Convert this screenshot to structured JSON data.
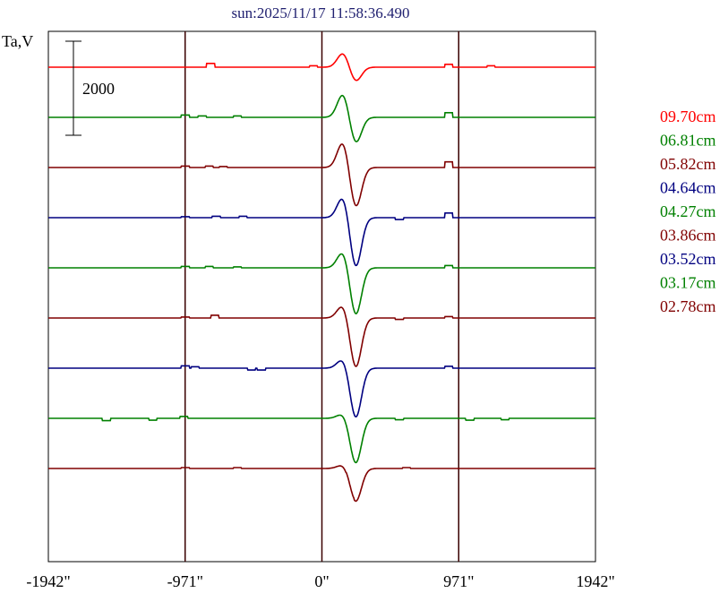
{
  "chart_data": {
    "type": "line",
    "title": "sun:2025/11/17 11:58:36.490",
    "ylabel": "Ta,V",
    "xlabel": "",
    "x_ticks": [
      {
        "value": -1942,
        "label": "-1942\""
      },
      {
        "value": -971,
        "label": "-971\""
      },
      {
        "value": 0,
        "label": "0\""
      },
      {
        "value": 971,
        "label": "971\""
      },
      {
        "value": 1942,
        "label": "1942\""
      }
    ],
    "xlim": [
      -1942,
      1942
    ],
    "grid": {
      "vertical_lines_at": [
        -971,
        0,
        971
      ]
    },
    "scale_bar": {
      "label": "2000",
      "value": 2000
    },
    "legend": {
      "placement": "right"
    },
    "series": [
      {
        "name": "09.70cm",
        "color": "#ff0000",
        "peak": 300,
        "trough": -300,
        "bumps": [
          [
            -790,
            80
          ],
          [
            -60,
            30
          ],
          [
            900,
            60
          ],
          [
            1200,
            30
          ]
        ]
      },
      {
        "name": "06.81cm",
        "color": "#008000",
        "peak": 500,
        "trough": -550,
        "bumps": [
          [
            -971,
            50
          ],
          [
            -850,
            30
          ],
          [
            -600,
            30
          ],
          [
            900,
            100
          ]
        ]
      },
      {
        "name": "05.82cm",
        "color": "#800000",
        "peak": 550,
        "trough": -850,
        "bumps": [
          [
            -971,
            30
          ],
          [
            -800,
            30
          ],
          [
            -700,
            20
          ],
          [
            900,
            120
          ]
        ]
      },
      {
        "name": "04.64cm",
        "color": "#000080",
        "peak": 450,
        "trough": -1050,
        "bumps": [
          [
            -971,
            20
          ],
          [
            -750,
            30
          ],
          [
            -560,
            30
          ],
          [
            550,
            -40
          ],
          [
            900,
            100
          ]
        ]
      },
      {
        "name": "04.27cm",
        "color": "#008000",
        "peak": 350,
        "trough": -1000,
        "bumps": [
          [
            -971,
            30
          ],
          [
            -800,
            30
          ],
          [
            -600,
            20
          ],
          [
            900,
            50
          ]
        ]
      },
      {
        "name": "03.86cm",
        "color": "#800000",
        "peak": 280,
        "trough": -1050,
        "bumps": [
          [
            -971,
            20
          ],
          [
            -760,
            60
          ],
          [
            550,
            -30
          ],
          [
            900,
            30
          ]
        ]
      },
      {
        "name": "03.52cm",
        "color": "#000080",
        "peak": 200,
        "trough": -1050,
        "bumps": [
          [
            -971,
            50
          ],
          [
            -900,
            30
          ],
          [
            -500,
            -40
          ],
          [
            -430,
            -40
          ],
          [
            900,
            40
          ]
        ]
      },
      {
        "name": "03.17cm",
        "color": "#008000",
        "peak": 100,
        "trough": -950,
        "bumps": [
          [
            -1530,
            -50
          ],
          [
            -1200,
            -40
          ],
          [
            -980,
            40
          ],
          [
            550,
            -30
          ],
          [
            1050,
            -40
          ],
          [
            1300,
            -30
          ]
        ]
      },
      {
        "name": "02.78cm",
        "color": "#800000",
        "peak": 80,
        "trough": -700,
        "bumps": [
          [
            -971,
            20
          ],
          [
            -600,
            20
          ],
          [
            200,
            20
          ],
          [
            600,
            20
          ]
        ]
      }
    ]
  }
}
